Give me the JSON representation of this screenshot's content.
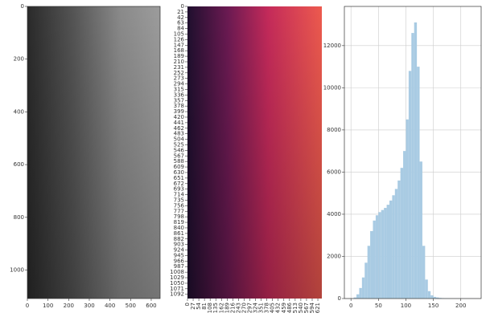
{
  "chart_data": [
    {
      "type": "image",
      "colormap": "gray",
      "xlim": [
        0,
        643
      ],
      "ylim": [
        1108,
        0
      ],
      "xticks": [
        0,
        100,
        200,
        300,
        400,
        500,
        600
      ],
      "yticks": [
        0,
        200,
        400,
        600,
        800,
        1000
      ]
    },
    {
      "type": "heatmap",
      "colormap": "rocket",
      "xlim": [
        0,
        640
      ],
      "ylim": [
        1108,
        0
      ],
      "xticks": [
        0,
        27,
        54,
        81,
        108,
        135,
        162,
        189,
        216,
        243,
        270,
        297,
        324,
        351,
        378,
        405,
        432,
        459,
        486,
        513,
        540,
        567,
        594,
        621
      ],
      "yticks": [
        0,
        21,
        42,
        63,
        84,
        105,
        126,
        147,
        168,
        189,
        210,
        231,
        252,
        273,
        294,
        315,
        336,
        357,
        378,
        399,
        420,
        441,
        462,
        483,
        504,
        525,
        546,
        567,
        588,
        609,
        630,
        651,
        672,
        693,
        714,
        735,
        756,
        777,
        798,
        819,
        840,
        861,
        882,
        903,
        924,
        945,
        966,
        987,
        1008,
        1029,
        1050,
        1071,
        1092
      ]
    },
    {
      "type": "histogram",
      "color": "#a9cbe3",
      "grid": true,
      "xlim": [
        -12,
        237
      ],
      "ylim": [
        0,
        13860
      ],
      "xticks": [
        0,
        50,
        100,
        150,
        200
      ],
      "yticks": [
        0,
        2000,
        4000,
        6000,
        8000,
        10000,
        12000
      ],
      "bins": [
        0,
        5,
        10,
        15,
        20,
        25,
        30,
        35,
        40,
        45,
        50,
        55,
        60,
        65,
        70,
        75,
        80,
        85,
        90,
        95,
        100,
        105,
        110,
        115,
        120,
        125,
        130,
        135,
        140,
        145,
        150,
        155,
        160,
        165,
        170,
        175,
        180,
        185,
        190,
        195,
        200,
        205,
        210,
        215,
        220,
        225
      ],
      "values": [
        0,
        50,
        200,
        500,
        1000,
        1700,
        2500,
        3200,
        3700,
        3950,
        4100,
        4200,
        4300,
        4450,
        4650,
        4900,
        5200,
        5600,
        6200,
        7000,
        8500,
        10800,
        12600,
        13100,
        11000,
        6500,
        2500,
        900,
        350,
        150,
        80,
        50,
        30,
        20,
        15,
        10,
        8,
        6,
        5,
        4,
        3,
        5,
        3,
        2,
        1
      ]
    }
  ]
}
